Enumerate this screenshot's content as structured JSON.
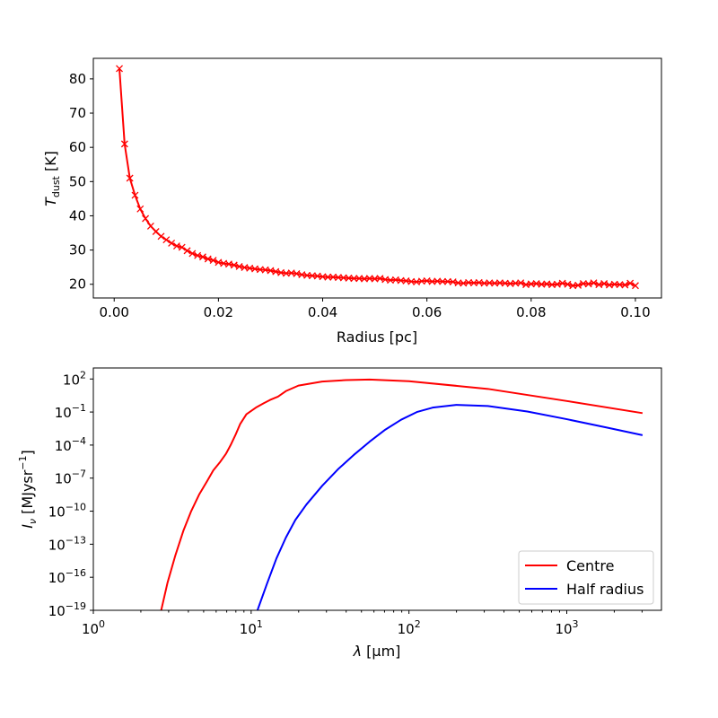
{
  "chart_data": [
    {
      "type": "line",
      "xlabel": "Radius [pc]",
      "ylabel_main": "T",
      "ylabel_sub": "dust",
      "ylabel_unit": " [K]",
      "xlim": [
        -0.004,
        0.105
      ],
      "ylim": [
        16,
        86
      ],
      "xticks": [
        0.0,
        0.02,
        0.04,
        0.06,
        0.08,
        0.1
      ],
      "xtick_labels": [
        "0.00",
        "0.02",
        "0.04",
        "0.06",
        "0.08",
        "0.10"
      ],
      "yticks": [
        20,
        30,
        40,
        50,
        60,
        70,
        80
      ],
      "ytick_labels": [
        "20",
        "30",
        "40",
        "50",
        "60",
        "70",
        "80"
      ],
      "grid": false,
      "marker": "x",
      "color": "#ff0000",
      "x": [
        0.001,
        0.002,
        0.003,
        0.004,
        0.005,
        0.006,
        0.007,
        0.008,
        0.009,
        0.01,
        0.011,
        0.012,
        0.013,
        0.014,
        0.015,
        0.016,
        0.017,
        0.018,
        0.019,
        0.02,
        0.021,
        0.022,
        0.023,
        0.024,
        0.025,
        0.026,
        0.027,
        0.028,
        0.029,
        0.03,
        0.031,
        0.032,
        0.033,
        0.034,
        0.035,
        0.036,
        0.037,
        0.038,
        0.039,
        0.04,
        0.041,
        0.042,
        0.043,
        0.044,
        0.045,
        0.046,
        0.047,
        0.048,
        0.049,
        0.05,
        0.051,
        0.052,
        0.053,
        0.054,
        0.055,
        0.056,
        0.057,
        0.058,
        0.059,
        0.06,
        0.061,
        0.062,
        0.063,
        0.064,
        0.065,
        0.066,
        0.067,
        0.068,
        0.069,
        0.07,
        0.071,
        0.072,
        0.073,
        0.074,
        0.075,
        0.076,
        0.077,
        0.078,
        0.079,
        0.08,
        0.081,
        0.082,
        0.083,
        0.084,
        0.085,
        0.086,
        0.087,
        0.088,
        0.089,
        0.09,
        0.091,
        0.092,
        0.093,
        0.094,
        0.095,
        0.096,
        0.097,
        0.098,
        0.099,
        0.1
      ],
      "y": [
        83.0,
        61.0,
        51.0,
        46.0,
        42.0,
        39.2,
        37.0,
        35.4,
        34.0,
        33.0,
        32.0,
        31.2,
        30.8,
        29.8,
        29.0,
        28.4,
        28.0,
        27.4,
        27.0,
        26.4,
        26.1,
        25.9,
        25.6,
        25.2,
        24.9,
        24.7,
        24.5,
        24.3,
        24.2,
        24.0,
        23.7,
        23.4,
        23.2,
        23.3,
        23.1,
        22.8,
        22.6,
        22.5,
        22.4,
        22.2,
        22.1,
        22.1,
        22.0,
        21.9,
        21.8,
        21.7,
        21.7,
        21.6,
        21.7,
        21.6,
        21.7,
        21.4,
        21.2,
        21.3,
        21.1,
        21.0,
        20.8,
        20.7,
        20.9,
        21.0,
        20.8,
        20.9,
        20.8,
        20.8,
        20.7,
        20.4,
        20.3,
        20.5,
        20.4,
        20.5,
        20.3,
        20.4,
        20.3,
        20.4,
        20.3,
        20.2,
        20.3,
        20.4,
        19.9,
        20.1,
        20.2,
        20.0,
        20.1,
        19.9,
        20.0,
        20.3,
        20.0,
        19.6,
        19.7,
        20.2,
        20.1,
        20.4,
        19.9,
        20.2,
        19.8,
        20.0,
        19.9,
        19.8,
        20.3,
        19.6
      ]
    },
    {
      "type": "line",
      "xlabel_var": "λ",
      "xlabel_unit": " [µm]",
      "ylabel_var": "I",
      "ylabel_sub": "ν",
      "ylabel_unit_pre": " [MJysr",
      "ylabel_unit_sup": "−1",
      "ylabel_unit_post": "]",
      "xscale": "log",
      "yscale": "log",
      "xlim_log10": [
        0,
        3.6
      ],
      "ylim_log10": [
        -19,
        3
      ],
      "xticks_log10": [
        0,
        1,
        2,
        3
      ],
      "yticks_log10": [
        2,
        -1,
        -4,
        -7,
        -10,
        -13,
        -16,
        -19
      ],
      "tick_base": "10",
      "grid": false,
      "legend_position": "lower right",
      "series": [
        {
          "name": "Centre",
          "color": "#ff0000",
          "x_log10": [
            0.43,
            0.47,
            0.52,
            0.57,
            0.62,
            0.67,
            0.72,
            0.76,
            0.8,
            0.84,
            0.87,
            0.9,
            0.93,
            0.97,
            1.03,
            1.08,
            1.12,
            1.17,
            1.22,
            1.3,
            1.45,
            1.6,
            1.75,
            2.0,
            2.5,
            3.0,
            3.48
          ],
          "y_log10": [
            -19.0,
            -16.5,
            -14.0,
            -11.8,
            -10.0,
            -8.5,
            -7.3,
            -6.3,
            -5.6,
            -4.8,
            -4.0,
            -3.1,
            -2.1,
            -1.2,
            -0.6,
            -0.2,
            0.1,
            0.4,
            0.9,
            1.4,
            1.77,
            1.9,
            1.95,
            1.8,
            1.1,
            0.0,
            -1.1
          ]
        },
        {
          "name": "Half radius",
          "color": "#0000ff",
          "x_log10": [
            1.04,
            1.1,
            1.16,
            1.22,
            1.28,
            1.35,
            1.45,
            1.55,
            1.65,
            1.75,
            1.85,
            1.95,
            2.05,
            2.15,
            2.3,
            2.5,
            2.75,
            3.0,
            3.25,
            3.48
          ],
          "y_log10": [
            -19.0,
            -16.6,
            -14.3,
            -12.4,
            -10.8,
            -9.4,
            -7.7,
            -6.2,
            -4.9,
            -3.7,
            -2.6,
            -1.7,
            -1.0,
            -0.6,
            -0.35,
            -0.45,
            -0.95,
            -1.65,
            -2.4,
            -3.1
          ]
        }
      ]
    }
  ]
}
